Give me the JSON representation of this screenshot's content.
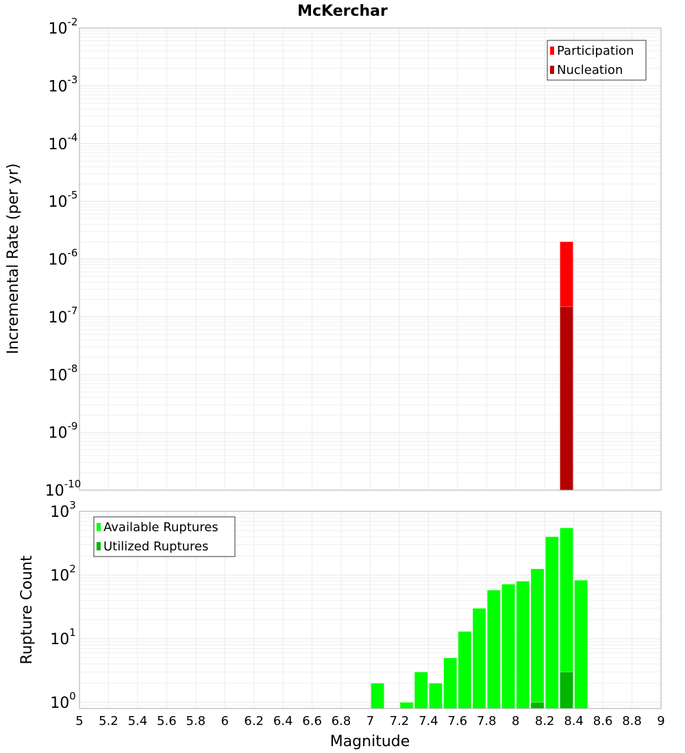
{
  "chart_data": [
    {
      "type": "bar",
      "title": "McKerchar",
      "xlabel": "Magnitude",
      "ylabel": "Incremental Rate (per yr)",
      "yscale": "log",
      "ylim": [
        1e-10,
        0.01
      ],
      "xlim": [
        5,
        9
      ],
      "y_tick_exponents": [
        -10,
        -9,
        -8,
        -7,
        -6,
        -5,
        -4,
        -3,
        -2
      ],
      "grid": true,
      "legend_position": "top-right",
      "series": [
        {
          "name": "Participation",
          "color": "#ff0000",
          "x": [
            8.35
          ],
          "values": [
            2e-06
          ]
        },
        {
          "name": "Nucleation",
          "color": "#b40000",
          "x": [
            8.35
          ],
          "values": [
            1.5e-07
          ]
        }
      ]
    },
    {
      "type": "bar",
      "xlabel": "Magnitude",
      "ylabel": "Rupture Count",
      "yscale": "log",
      "ylim": [
        0.8,
        1000
      ],
      "xlim": [
        5,
        9
      ],
      "x_ticks": [
        "5",
        "5.2",
        "5.4",
        "5.6",
        "5.8",
        "6",
        "6.2",
        "6.4",
        "6.6",
        "6.8",
        "7",
        "7.2",
        "7.4",
        "7.6",
        "7.8",
        "8",
        "8.2",
        "8.4",
        "8.6",
        "8.8",
        "9"
      ],
      "y_tick_exponents": [
        0,
        1,
        2,
        3
      ],
      "grid": true,
      "legend_position": "top-left",
      "series": [
        {
          "name": "Available Ruptures",
          "color": "#00ff00",
          "x": [
            7.05,
            7.25,
            7.35,
            7.45,
            7.55,
            7.65,
            7.75,
            7.85,
            7.95,
            8.05,
            8.15,
            8.25,
            8.35,
            8.45
          ],
          "values": [
            2,
            1,
            3,
            2,
            5,
            13,
            30,
            58,
            72,
            80,
            125,
            400,
            550,
            83
          ]
        },
        {
          "name": "Utilized Ruptures",
          "color": "#00b400",
          "x": [
            8.15,
            8.35
          ],
          "values": [
            1,
            3
          ]
        }
      ]
    }
  ]
}
